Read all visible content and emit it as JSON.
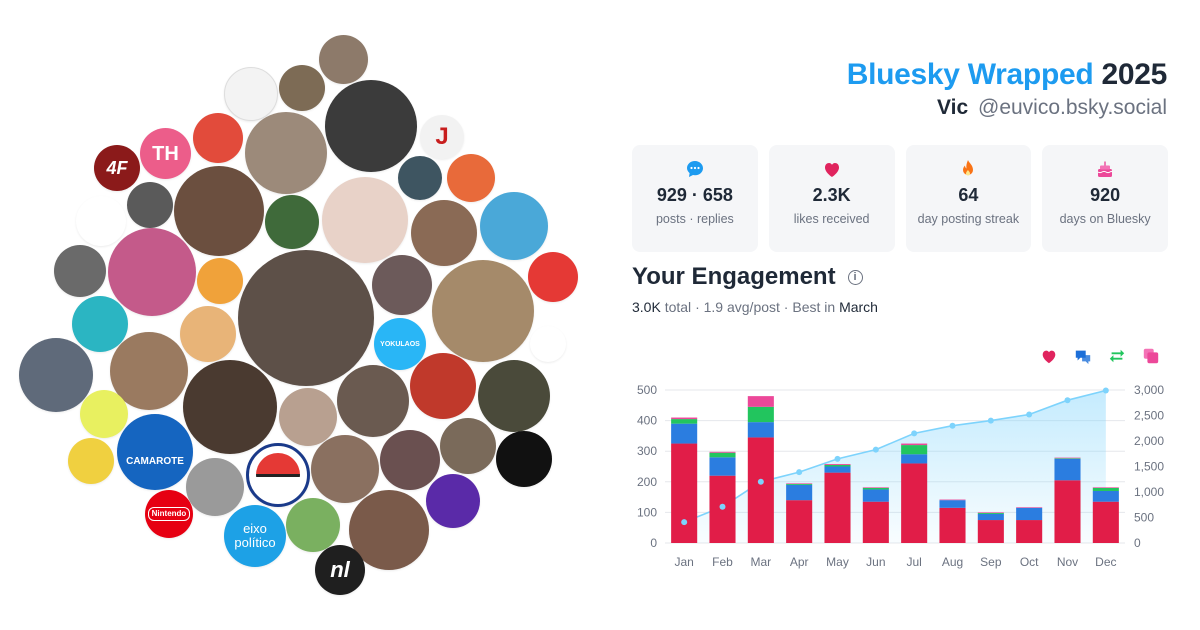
{
  "header": {
    "brand": "Bluesky Wrapped",
    "year": "2025",
    "display_name": "Vic",
    "handle": "@euvico.bsky.social"
  },
  "stats": [
    {
      "icon": "chat-bubble-icon",
      "value": "929 · 658",
      "label": "posts · replies",
      "color": "#1d9bf0"
    },
    {
      "icon": "heart-icon",
      "value": "2.3K",
      "label": "likes received",
      "color": "#e0245e"
    },
    {
      "icon": "flame-icon",
      "value": "64",
      "label": "day posting streak",
      "color": "#f97316"
    },
    {
      "icon": "cake-icon",
      "value": "920",
      "label": "days on Bluesky",
      "color": "#ec4899"
    }
  ],
  "engagement": {
    "title": "Your Engagement",
    "total_value": "3.0K",
    "total_label": "total",
    "avg": "1.9 avg/post",
    "best_prefix": "Best in",
    "best_month": "March"
  },
  "legend": [
    {
      "icon": "heart-icon",
      "color": "#e0245e"
    },
    {
      "icon": "replies-icon",
      "color": "#1d6fd8"
    },
    {
      "icon": "repost-icon",
      "color": "#22c55e"
    },
    {
      "icon": "quote-icon",
      "color": "#ec4899"
    }
  ],
  "avatars": [
    {
      "name": "avatar-nintendo",
      "text": "Nintendo",
      "color": "#e60012"
    },
    {
      "name": "avatar-eixo-politico",
      "text": "eixo\npolítico",
      "color": "#1da1e6"
    },
    {
      "name": "avatar-camarote",
      "text": "CAMAROTE",
      "color": "#1565c0"
    },
    {
      "name": "avatar-th",
      "text": "TH",
      "color": "#ec5d8a"
    },
    {
      "name": "avatar-nl",
      "text": "nl",
      "color": "#1f1f1f"
    },
    {
      "name": "avatar-4f",
      "text": "4F",
      "color": "#8b1a1a"
    },
    {
      "name": "avatar-j",
      "text": "J",
      "color": "#c81e1e"
    },
    {
      "name": "avatar-yakulaos",
      "text": "YOKULAOS",
      "color": "#29b6f6"
    }
  ],
  "chart_data": {
    "type": "bar",
    "stacked": true,
    "categories": [
      "Jan",
      "Feb",
      "Mar",
      "Apr",
      "May",
      "Jun",
      "Jul",
      "Aug",
      "Sep",
      "Oct",
      "Nov",
      "Dec"
    ],
    "series": [
      {
        "values": [
          325,
          220,
          345,
          140,
          230,
          135,
          260,
          115,
          75,
          75,
          205,
          135
        ],
        "color": "#e11d48"
      },
      {
        "values": [
          65,
          60,
          50,
          50,
          20,
          40,
          30,
          25,
          20,
          40,
          70,
          35
        ],
        "color": "#2b7de0"
      },
      {
        "values": [
          15,
          15,
          50,
          3,
          5,
          5,
          30,
          0,
          3,
          0,
          2,
          10
        ],
        "color": "#22c55e"
      },
      {
        "values": [
          5,
          3,
          35,
          2,
          3,
          2,
          5,
          2,
          2,
          2,
          2,
          2
        ],
        "color": "#ec4899"
      }
    ],
    "cumulative": {
      "values": [
        410,
        710,
        1200,
        1390,
        1650,
        1830,
        2150,
        2300,
        2400,
        2520,
        2800,
        2990
      ],
      "color": "#7dd3fc"
    },
    "ylim": [
      0,
      500
    ],
    "y_ticks": [
      "0",
      "100",
      "200",
      "300",
      "400",
      "500"
    ],
    "y2lim": [
      0,
      3000
    ],
    "y2_ticks": [
      "0",
      "500",
      "1,000",
      "1,500",
      "2,000",
      "2,500",
      "3,000"
    ],
    "grid": true
  }
}
